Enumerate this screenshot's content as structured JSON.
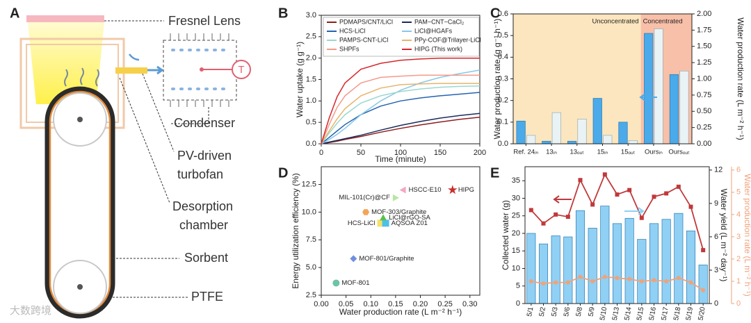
{
  "diagram": {
    "panel": "A",
    "lens": "Fresnel Lens",
    "condenser": "Condenser",
    "turbofan": [
      "PV-driven",
      "turbofan"
    ],
    "chamber": [
      "Desorption",
      "chamber"
    ],
    "sorbent": "Sorbent",
    "belt": "PTFE",
    "thermometer": "T"
  },
  "watermark": "大数跨境",
  "chart_data": [
    {
      "type": "line",
      "panel": "B",
      "x_label": "Time (minute)",
      "y_label": "Water uptake (g g⁻¹)",
      "x": [
        0,
        10,
        20,
        30,
        50,
        75,
        100,
        125,
        150,
        175,
        200
      ],
      "xlim": [
        0,
        200
      ],
      "xticks": [
        0,
        50,
        100,
        150,
        200
      ],
      "ylim": [
        0,
        3
      ],
      "yticks": [
        {
          "value": 0,
          "label": "0.0"
        },
        0.5,
        {
          "value": 1,
          "label": "1.0"
        },
        1.5,
        {
          "value": 2,
          "label": "2.0"
        },
        2.5,
        {
          "value": 3,
          "label": "3.0"
        }
      ],
      "legend": "top-left",
      "series": [
        {
          "name": "PDMAPS/CNT/LiCl",
          "color": "#8b1e1e",
          "values": [
            0,
            0.03,
            0.06,
            0.1,
            0.17,
            0.27,
            0.36,
            0.44,
            0.51,
            0.57,
            0.62
          ]
        },
        {
          "name": "PAM−CNT−CaCl₂",
          "color": "#1b2a5c",
          "values": [
            0,
            0.04,
            0.08,
            0.12,
            0.2,
            0.32,
            0.43,
            0.52,
            0.6,
            0.66,
            0.71
          ]
        },
        {
          "name": "HCS-LiCl",
          "color": "#2563b0",
          "values": [
            0,
            0.15,
            0.3,
            0.45,
            0.68,
            0.88,
            1.0,
            1.07,
            1.12,
            1.16,
            1.2
          ]
        },
        {
          "name": "LiCl@HGAFs",
          "color": "#86c8e8",
          "values": [
            0,
            0.1,
            0.22,
            0.36,
            0.68,
            1.0,
            1.25,
            1.42,
            1.55,
            1.64,
            1.72
          ]
        },
        {
          "name": "PAMPS-CNT-LiCl",
          "color": "#9ad8cf",
          "values": [
            0,
            0.25,
            0.48,
            0.68,
            0.95,
            1.12,
            1.22,
            1.28,
            1.32,
            1.34,
            1.35
          ]
        },
        {
          "name": "PPy-COF@Trilayer-LiCl",
          "color": "#e8b46a",
          "values": [
            0,
            0.3,
            0.58,
            0.82,
            1.12,
            1.3,
            1.38,
            1.4,
            1.41,
            1.41,
            1.41
          ]
        },
        {
          "name": "SHPFs",
          "color": "#f49a8a",
          "values": [
            0,
            0.45,
            0.85,
            1.12,
            1.42,
            1.55,
            1.58,
            1.6,
            1.6,
            1.6,
            1.6
          ]
        },
        {
          "name": "HIPG (This work)",
          "color": "#d7262b",
          "values": [
            0,
            0.6,
            1.1,
            1.42,
            1.74,
            1.88,
            1.95,
            1.98,
            2.0,
            2.0,
            2.0
          ]
        }
      ]
    },
    {
      "type": "bar",
      "panel": "C",
      "y_label": "Water production rate (g g⁻¹ h⁻¹)",
      "y2_label": "Water production rate (L m⁻² h⁻¹)",
      "annotations": [
        "Unconcentrated",
        "Concentrated"
      ],
      "background_colors": [
        "#fbe6bf",
        "#f8c0a8"
      ],
      "categories": [
        "Ref. 24ᵢₙ",
        "13ᵢₙ",
        "13ₒᵤₜ",
        "15ᵢₙ",
        "15ₒᵤₜ",
        "Oursᵢₙ",
        "Oursₒᵤₜ"
      ],
      "ylim": [
        0,
        0.6
      ],
      "yticks": [
        {
          "value": 0,
          "label": "0.0"
        },
        0.1,
        0.2,
        0.3,
        0.4,
        0.5,
        0.6
      ],
      "y2lim": [
        0,
        2
      ],
      "y2ticks": [
        {
          "value": 0,
          "label": "0.00"
        },
        {
          "value": 0.25,
          "label": "0.25"
        },
        {
          "value": 0.5,
          "label": "0.50"
        },
        {
          "value": 0.75,
          "label": "0.75"
        },
        {
          "value": 1,
          "label": "1.00"
        },
        {
          "value": 1.25,
          "label": "1.25"
        },
        {
          "value": 1.5,
          "label": "1.50"
        },
        {
          "value": 1.75,
          "label": "1.75"
        },
        {
          "value": 2,
          "label": "2.00"
        }
      ],
      "series": [
        {
          "color": "#4aaaea",
          "values": [
            0.105,
            0.012,
            0.012,
            0.21,
            0.1,
            0.51,
            0.32
          ]
        },
        {
          "color": "#e9f3f6",
          "axis": "y2",
          "values": [
            0.13,
            0.48,
            0.38,
            0.13,
            0.05,
            1.77,
            1.12
          ]
        }
      ]
    },
    {
      "type": "scatter",
      "panel": "D",
      "x_label": "Water production rate (L m⁻² h⁻¹)",
      "y_label": "Energy utilization efficiency (%)",
      "xlim": [
        0,
        0.32
      ],
      "xticks": [
        {
          "value": 0,
          "label": "0.00"
        },
        0.05,
        {
          "value": 0.1,
          "label": "0.10"
        },
        0.15,
        {
          "value": 0.2,
          "label": "0.20"
        },
        0.25,
        {
          "value": 0.3,
          "label": "0.30"
        }
      ],
      "ylim": [
        2.5,
        14.1
      ],
      "yticks": [
        2.5,
        {
          "value": 5,
          "label": "5.0"
        },
        7.5,
        {
          "value": 10,
          "label": "10.0"
        },
        12.5
      ],
      "points": [
        {
          "name": "MOF-801",
          "x": 0.03,
          "y": 3.6,
          "color": "#6cc4a4",
          "marker": "circle"
        },
        {
          "name": "MOF-801/Graphite",
          "x": 0.065,
          "y": 5.8,
          "color": "#6f8fe0",
          "marker": "diamond"
        },
        {
          "name": "HCS-LiCl",
          "x": 0.12,
          "y": 9.0,
          "color": "#f5e06a",
          "marker": "square"
        },
        {
          "name": "AQSOA Z01",
          "x": 0.13,
          "y": 9.0,
          "color": "#4cc0e8",
          "marker": "square"
        },
        {
          "name": "LiCl@rGO-SA",
          "x": 0.125,
          "y": 9.5,
          "color": "#5cbf4a",
          "marker": "triangle"
        },
        {
          "name": "MOF-303/Graphite",
          "x": 0.09,
          "y": 10.0,
          "color": "#f4a45a",
          "marker": "hexagon"
        },
        {
          "name": "MIL-101(Cr)@CF",
          "x": 0.15,
          "y": 11.3,
          "color": "#b8e6a0",
          "marker": "triangle-right"
        },
        {
          "name": "HSCC-E10",
          "x": 0.165,
          "y": 12.0,
          "color": "#f4a8c0",
          "marker": "triangle-left"
        },
        {
          "name": "HIPG",
          "x": 0.265,
          "y": 12.0,
          "color": "#c8302c",
          "marker": "star"
        }
      ]
    },
    {
      "type": "bar",
      "panel": "E",
      "categories": [
        "5/1",
        "5/2",
        "5/3",
        "5/6",
        "5/8",
        "5/9",
        "5/10",
        "5/13",
        "5/14",
        "5/15",
        "5/16",
        "5/17",
        "5/18",
        "5/19",
        "5/20"
      ],
      "y_label": "Collected water (g)",
      "y2_label": "Water yield (L m⁻² day⁻¹)",
      "y3_label": "Water production rate (L m⁻² h⁻¹)",
      "ylim": [
        0,
        39
      ],
      "yticks": [
        0,
        5,
        10,
        15,
        20,
        25,
        30,
        35
      ],
      "y2lim": [
        0,
        12.3
      ],
      "y2ticks": [
        0,
        3,
        6,
        9,
        12
      ],
      "y3lim": [
        0,
        6.15
      ],
      "y3ticks": [
        0,
        1,
        2,
        3,
        4,
        5,
        6
      ],
      "series": [
        {
          "kind": "bar",
          "color": "#8fd0f4",
          "values": [
            20,
            17,
            19.3,
            19,
            26.5,
            21.5,
            27.8,
            22.8,
            24.3,
            18.3,
            22.8,
            24,
            25.7,
            20.7,
            11
          ]
        },
        {
          "kind": "line",
          "axis": "y2",
          "color": "#c0393b",
          "values": [
            8.4,
            7.2,
            8.0,
            7.8,
            11.1,
            8.9,
            11.6,
            9.8,
            10.2,
            7.7,
            9.6,
            9.9,
            10.5,
            8.7,
            4.8
          ]
        },
        {
          "kind": "line",
          "axis": "y3",
          "color": "#f0a27a",
          "values": [
            1.0,
            0.9,
            0.95,
            0.95,
            1.2,
            1.0,
            1.2,
            1.15,
            1.1,
            1.0,
            1.05,
            1.0,
            1.15,
            0.95,
            0.6
          ]
        }
      ]
    }
  ]
}
